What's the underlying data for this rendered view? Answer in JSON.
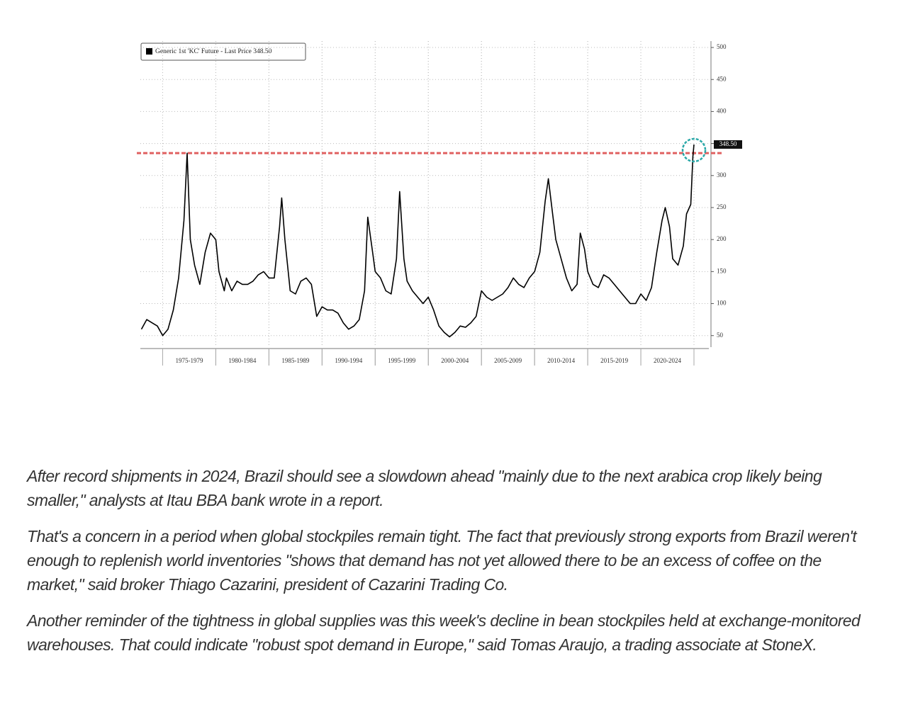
{
  "chart_data": {
    "type": "line",
    "legend_label": "Generic 1st 'KC' Future - Last Price 348.50",
    "last_price_label": "348.50",
    "reference_line": 335,
    "series": [
      {
        "name": "Generic 1st 'KC' Future - Last Price 348.50",
        "color": "#000000",
        "x": [
          1973,
          1973.5,
          1974,
          1974.5,
          1975,
          1975.5,
          1976,
          1976.5,
          1977,
          1977.3,
          1977.6,
          1978,
          1978.5,
          1979,
          1979.5,
          1980,
          1980.3,
          1980.8,
          1981,
          1981.5,
          1982,
          1982.5,
          1983,
          1983.5,
          1984,
          1984.5,
          1985,
          1985.5,
          1986,
          1986.2,
          1986.5,
          1987,
          1987.5,
          1988,
          1988.5,
          1989,
          1989.5,
          1990,
          1990.5,
          1991,
          1991.5,
          1992,
          1992.5,
          1993,
          1993.5,
          1994,
          1994.3,
          1994.8,
          1995,
          1995.5,
          1996,
          1996.5,
          1997,
          1997.3,
          1997.7,
          1998,
          1998.5,
          1999,
          1999.5,
          2000,
          2000.5,
          2001,
          2001.5,
          2002,
          2002.5,
          2003,
          2003.5,
          2004,
          2004.5,
          2005,
          2005.5,
          2006,
          2006.5,
          2007,
          2007.5,
          2008,
          2008.5,
          2009,
          2009.5,
          2010,
          2010.5,
          2011,
          2011.3,
          2011.7,
          2012,
          2012.5,
          2013,
          2013.5,
          2014,
          2014.3,
          2014.7,
          2015,
          2015.5,
          2016,
          2016.5,
          2017,
          2017.5,
          2018,
          2018.5,
          2019,
          2019.5,
          2020,
          2020.5,
          2021,
          2021.5,
          2022,
          2022.3,
          2022.7,
          2023,
          2023.5,
          2024,
          2024.3,
          2024.7,
          2024.9,
          2025
        ],
        "values": [
          60,
          75,
          70,
          65,
          50,
          60,
          90,
          140,
          230,
          335,
          200,
          160,
          130,
          180,
          210,
          200,
          150,
          120,
          140,
          120,
          135,
          130,
          130,
          135,
          145,
          150,
          140,
          140,
          220,
          265,
          200,
          120,
          115,
          135,
          140,
          130,
          80,
          95,
          90,
          90,
          85,
          70,
          60,
          65,
          75,
          120,
          235,
          175,
          150,
          140,
          120,
          115,
          170,
          275,
          170,
          135,
          120,
          110,
          100,
          110,
          90,
          65,
          55,
          48,
          55,
          65,
          63,
          70,
          80,
          120,
          110,
          105,
          110,
          115,
          125,
          140,
          130,
          125,
          140,
          150,
          180,
          260,
          295,
          240,
          200,
          170,
          140,
          120,
          130,
          210,
          185,
          150,
          130,
          125,
          145,
          140,
          130,
          120,
          110,
          100,
          100,
          115,
          105,
          125,
          180,
          230,
          250,
          220,
          170,
          160,
          190,
          240,
          255,
          330,
          348.5
        ]
      }
    ],
    "xlim": [
      1972.9,
      2026.4
    ],
    "xticks": [
      {
        "value": 1977.5,
        "label": "1975-1979"
      },
      {
        "value": 1982.5,
        "label": "1980-1984"
      },
      {
        "value": 1987.5,
        "label": "1985-1989"
      },
      {
        "value": 1992.5,
        "label": "1990-1994"
      },
      {
        "value": 1997.5,
        "label": "1995-1999"
      },
      {
        "value": 2002.5,
        "label": "2000-2004"
      },
      {
        "value": 2007.5,
        "label": "2005-2009"
      },
      {
        "value": 2012.5,
        "label": "2010-2014"
      },
      {
        "value": 2017.5,
        "label": "2015-2019"
      },
      {
        "value": 2022.5,
        "label": "2020-2024"
      }
    ],
    "ylim": [
      32,
      510
    ],
    "yticks": [
      50,
      100,
      150,
      200,
      250,
      300,
      350,
      400,
      450,
      500
    ],
    "grid": true
  },
  "article": {
    "paragraphs": [
      "After record shipments in 2024, Brazil should see a slowdown ahead \"mainly due to the next arabica crop likely being smaller,\" analysts at Itau BBA bank wrote in a report.",
      "That's a concern in a period when global stockpiles remain tight. The fact that previously strong exports from Brazil weren't enough to replenish world inventories \"shows that demand has not yet allowed there to be an excess of coffee on the market,\" said broker Thiago Cazarini, president of Cazarini Trading Co.",
      "Another reminder of the tightness in global supplies was this week's decline in bean stockpiles held at exchange-monitored warehouses. That could indicate \"robust spot demand in Europe,\" said Tomas Araujo, a trading associate at StoneX."
    ]
  }
}
